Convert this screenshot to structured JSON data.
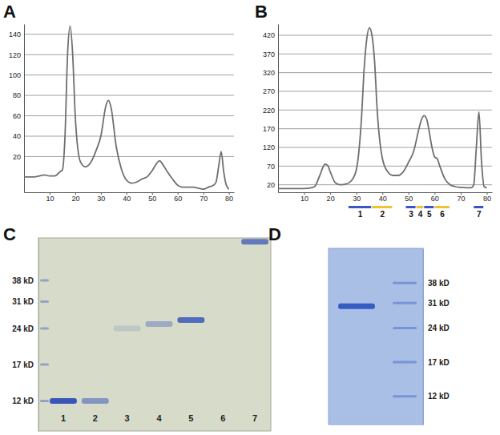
{
  "chart_data": [
    {
      "type": "line",
      "panel_label": "A",
      "x": [
        0,
        2,
        4,
        6,
        8,
        10,
        12,
        14,
        15,
        16,
        17,
        18,
        19,
        20,
        22,
        24,
        26,
        28,
        30,
        32,
        33,
        34,
        36,
        38,
        40,
        42,
        44,
        46,
        48,
        50,
        52,
        53,
        54,
        56,
        58,
        60,
        62,
        64,
        66,
        68,
        70,
        72,
        74,
        75,
        76,
        77,
        78,
        79,
        80
      ],
      "values": [
        0,
        0,
        0,
        1,
        2,
        1,
        1,
        5,
        7,
        40,
        120,
        148,
        120,
        60,
        15,
        10,
        14,
        25,
        40,
        70,
        75,
        68,
        30,
        8,
        -3,
        -6,
        -5,
        -2,
        0,
        6,
        14,
        16,
        13,
        5,
        -2,
        -8,
        -10,
        -10,
        -10,
        -11,
        -12,
        -10,
        -8,
        -5,
        10,
        25,
        5,
        -8,
        -12
      ],
      "xlim": [
        0,
        82
      ],
      "xticks": [
        10,
        20,
        30,
        40,
        50,
        60,
        70,
        80
      ],
      "ylim": [
        -15,
        150
      ],
      "yticks": [
        20,
        40,
        60,
        80,
        100,
        120,
        140
      ],
      "grid": true,
      "color": "#6f6f6f"
    },
    {
      "type": "line",
      "panel_label": "B",
      "x": [
        0,
        2,
        4,
        6,
        8,
        10,
        12,
        14,
        16,
        18,
        19,
        20,
        22,
        24,
        26,
        28,
        30,
        32,
        33,
        34,
        35,
        36,
        37,
        38,
        40,
        42,
        44,
        46,
        48,
        50,
        52,
        54,
        55,
        56,
        57,
        58,
        59,
        60,
        61,
        62,
        64,
        66,
        68,
        70,
        72,
        74,
        75,
        76,
        77,
        78,
        79,
        80
      ],
      "values": [
        10,
        10,
        10,
        10,
        10,
        10,
        11,
        15,
        45,
        75,
        72,
        55,
        25,
        20,
        22,
        30,
        60,
        200,
        330,
        410,
        440,
        420,
        350,
        220,
        90,
        55,
        45,
        45,
        55,
        80,
        110,
        170,
        195,
        205,
        195,
        160,
        120,
        95,
        90,
        70,
        35,
        20,
        15,
        13,
        12,
        12,
        20,
        120,
        215,
        80,
        15,
        12
      ],
      "xlim": [
        0,
        82
      ],
      "xticks": [
        10,
        20,
        30,
        40,
        50,
        60,
        70,
        80
      ],
      "ylim": [
        0,
        450
      ],
      "yticks": [
        20,
        70,
        120,
        170,
        220,
        270,
        320,
        370,
        420
      ],
      "grid": true,
      "color": "#6f6f6f",
      "fractions": [
        {
          "label": "1",
          "start": 27,
          "end": 36,
          "color": "#3b55c9"
        },
        {
          "label": "2",
          "start": 36,
          "end": 44,
          "color": "#f0c230"
        },
        {
          "label": "3",
          "start": 49,
          "end": 53,
          "color": "#3b55c9"
        },
        {
          "label": "4",
          "start": 53,
          "end": 56,
          "color": "#f0c230"
        },
        {
          "label": "5",
          "start": 56,
          "end": 60,
          "color": "#3b55c9"
        },
        {
          "label": "6",
          "start": 60,
          "end": 66,
          "color": "#f0c230"
        },
        {
          "label": "7",
          "start": 75,
          "end": 79,
          "color": "#3b55c9"
        }
      ]
    },
    {
      "type": "gel",
      "panel_label": "C",
      "categories": [
        "1",
        "2",
        "3",
        "4",
        "5",
        "6",
        "7"
      ],
      "log": "y",
      "ylim": [
        9,
        57
      ],
      "yticks": [
        {
          "value": 38,
          "label": "38 kD"
        },
        {
          "value": 31,
          "label": "31 kD"
        },
        {
          "value": 24,
          "label": "24 kD"
        },
        {
          "value": 17,
          "label": "17 kD"
        },
        {
          "value": 12,
          "label": "12 kD"
        }
      ],
      "color": "#3050b8",
      "bands": [
        {
          "lane": "1",
          "value": 12,
          "intensity": 0.95
        },
        {
          "lane": "2",
          "value": 12,
          "intensity": 0.5
        },
        {
          "lane": "3",
          "value": 24,
          "intensity": 0.15
        },
        {
          "lane": "4",
          "value": 25,
          "intensity": 0.35
        },
        {
          "lane": "5",
          "value": 26,
          "intensity": 0.8
        },
        {
          "lane": "7",
          "value": 55,
          "intensity": 0.7
        }
      ]
    },
    {
      "type": "gel",
      "panel_label": "D",
      "categories": [
        null
      ],
      "log": "y",
      "ylim": [
        9,
        54
      ],
      "yticks": [
        {
          "value": 38,
          "label": "38 kD"
        },
        {
          "value": 31,
          "label": "31 kD"
        },
        {
          "value": 24,
          "label": "24 kD"
        },
        {
          "value": 17,
          "label": "17 kD"
        },
        {
          "value": 12,
          "label": "12 kD"
        }
      ],
      "color": "#2f56c0",
      "bands": [
        {
          "lane": null,
          "value": 30,
          "intensity": 0.95
        }
      ]
    }
  ]
}
